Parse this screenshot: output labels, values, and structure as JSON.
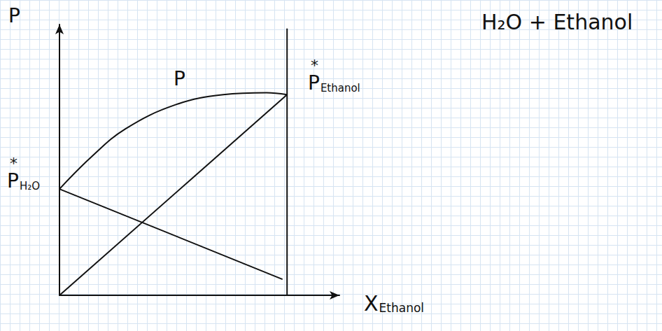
{
  "chart_data": {
    "type": "line",
    "title": "H₂O + Ethanol",
    "x_label": {
      "text": "X",
      "subscript": "Ethanol"
    },
    "y_label": "P",
    "xlim": [
      0,
      1.23
    ],
    "ylim": [
      0,
      1.35
    ],
    "tick_labels": false,
    "grid": false,
    "color": "#111111",
    "annotations": [
      {
        "text": "P",
        "superscript": "*",
        "subscript": "H₂O"
      },
      {
        "text": "P",
        "superscript": "*",
        "subscript": "Ethanol"
      },
      {
        "text": "P"
      }
    ],
    "series": [
      {
        "x": [
          0,
          0.14,
          0.29,
          0.51,
          0.72,
          0.91,
          1.0
        ],
        "values": [
          0.53,
          0.69,
          0.83,
          0.95,
          1.0,
          1.01,
          1.0
        ],
        "line_style": "solid"
      },
      {
        "x": [
          0,
          0.98
        ],
        "values": [
          0.53,
          0.08
        ],
        "line_style": "solid"
      },
      {
        "x": [
          0,
          1.0
        ],
        "values": [
          0,
          1.0
        ],
        "line_style": "solid"
      },
      {
        "x": [
          1.0,
          1.0
        ],
        "values": [
          0,
          1.33
        ],
        "line_style": "solid"
      }
    ]
  }
}
